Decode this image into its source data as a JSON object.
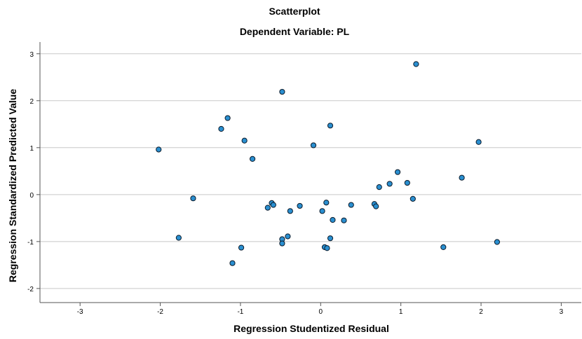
{
  "chart_data": {
    "type": "scatter",
    "title": "Scatterplot",
    "subtitle": "Dependent Variable: PL",
    "xlabel": "Regression Studentized Residual",
    "ylabel": "Regression Standardized Predicted Value",
    "xlim": [
      -3.5,
      3.25
    ],
    "ylim": [
      -2.3,
      3.25
    ],
    "x_ticks": [
      -3,
      -2,
      -1,
      0,
      1,
      2,
      3
    ],
    "y_ticks": [
      -2,
      -1,
      0,
      1,
      2,
      3
    ],
    "grid": "horizontal",
    "point_color": "#2a8fd0",
    "points": [
      {
        "x": -2.02,
        "y": 0.96
      },
      {
        "x": -1.77,
        "y": -0.92
      },
      {
        "x": -1.59,
        "y": -0.08
      },
      {
        "x": -1.24,
        "y": 1.4
      },
      {
        "x": -1.16,
        "y": 1.63
      },
      {
        "x": -1.1,
        "y": -1.46
      },
      {
        "x": -0.99,
        "y": -1.13
      },
      {
        "x": -0.95,
        "y": 1.15
      },
      {
        "x": -0.85,
        "y": 0.76
      },
      {
        "x": -0.66,
        "y": -0.28
      },
      {
        "x": -0.61,
        "y": -0.18
      },
      {
        "x": -0.59,
        "y": -0.22
      },
      {
        "x": -0.48,
        "y": 2.19
      },
      {
        "x": -0.48,
        "y": -0.95
      },
      {
        "x": -0.48,
        "y": -1.04
      },
      {
        "x": -0.41,
        "y": -0.89
      },
      {
        "x": -0.38,
        "y": -0.35
      },
      {
        "x": -0.26,
        "y": -0.24
      },
      {
        "x": -0.09,
        "y": 1.05
      },
      {
        "x": 0.02,
        "y": -0.35
      },
      {
        "x": 0.05,
        "y": -1.12
      },
      {
        "x": 0.07,
        "y": -0.17
      },
      {
        "x": 0.08,
        "y": -1.14
      },
      {
        "x": 0.12,
        "y": 1.47
      },
      {
        "x": 0.12,
        "y": -0.93
      },
      {
        "x": 0.15,
        "y": -0.54
      },
      {
        "x": 0.29,
        "y": -0.55
      },
      {
        "x": 0.38,
        "y": -0.22
      },
      {
        "x": 0.67,
        "y": -0.2
      },
      {
        "x": 0.69,
        "y": -0.25
      },
      {
        "x": 0.73,
        "y": 0.16
      },
      {
        "x": 0.86,
        "y": 0.23
      },
      {
        "x": 0.96,
        "y": 0.48
      },
      {
        "x": 1.08,
        "y": 0.25
      },
      {
        "x": 1.15,
        "y": -0.09
      },
      {
        "x": 1.19,
        "y": 2.78
      },
      {
        "x": 1.53,
        "y": -1.12
      },
      {
        "x": 1.76,
        "y": 0.36
      },
      {
        "x": 1.97,
        "y": 1.12
      },
      {
        "x": 2.2,
        "y": -1.01
      }
    ]
  }
}
